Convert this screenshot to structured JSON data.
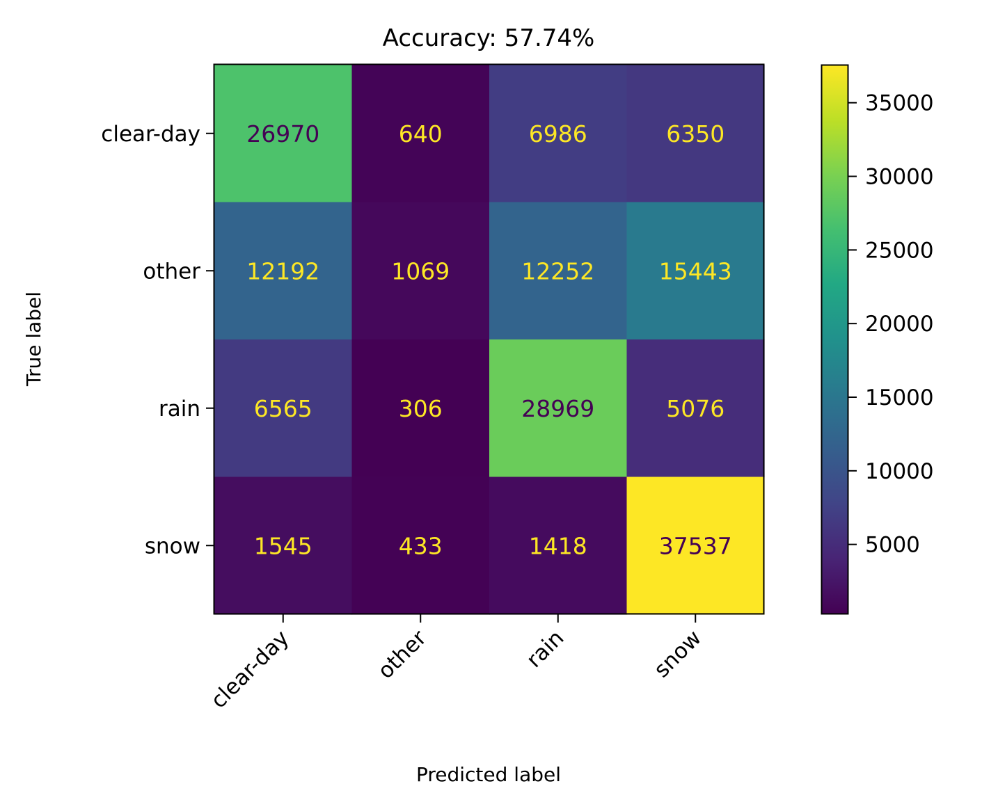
{
  "chart_data": {
    "type": "heatmap",
    "title": "Accuracy: 57.74%",
    "xlabel": "Predicted label",
    "ylabel": "True label",
    "x_categories": [
      "clear-day",
      "other",
      "rain",
      "snow"
    ],
    "y_categories": [
      "clear-day",
      "other",
      "rain",
      "snow"
    ],
    "values": [
      [
        26970,
        640,
        6986,
        6350
      ],
      [
        12192,
        1069,
        12252,
        15443
      ],
      [
        6565,
        306,
        28969,
        5076
      ],
      [
        1545,
        433,
        1418,
        37537
      ]
    ],
    "colormap": "viridis",
    "colorbar": {
      "ticks": [
        5000,
        10000,
        15000,
        20000,
        25000,
        30000,
        35000
      ],
      "tick_labels": [
        "5000",
        "10000",
        "15000",
        "20000",
        "25000",
        "30000",
        "35000"
      ],
      "vmin": 306,
      "vmax": 37537
    },
    "label_colors": {
      "on_dark": "#fde725",
      "on_light": "#440154"
    }
  }
}
